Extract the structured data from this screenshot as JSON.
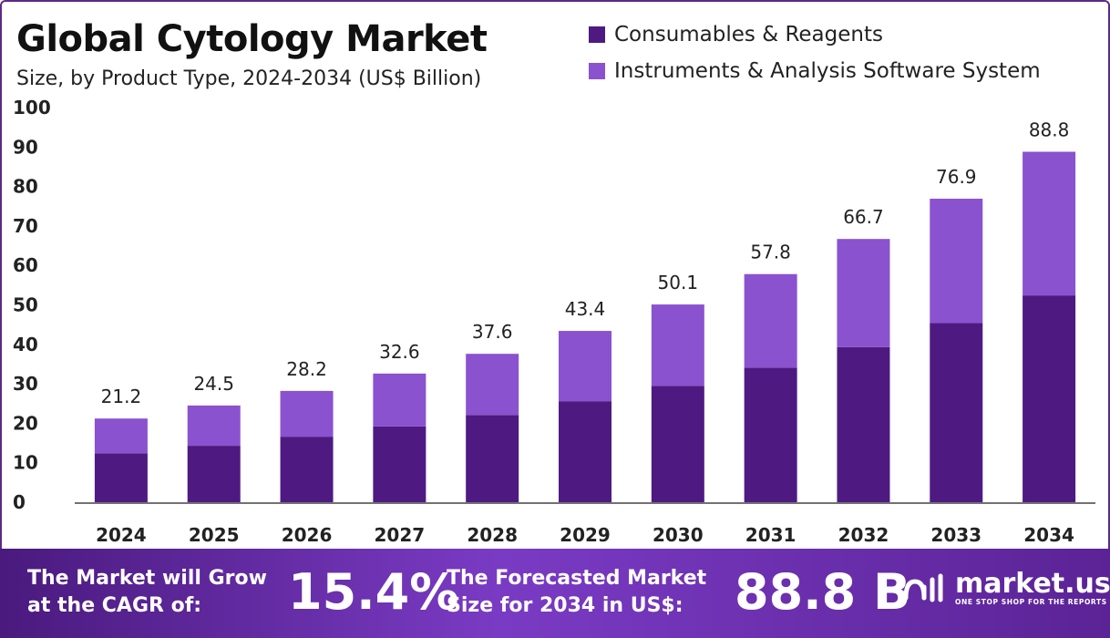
{
  "header": {
    "title": "Global Cytology Market",
    "subtitle": "Size, by Product Type, 2024-2034 (US$ Billion)"
  },
  "colors": {
    "consumables": "#4e1a82",
    "instruments": "#8a52cf",
    "axis": "#222222"
  },
  "chart_data": {
    "type": "bar",
    "stacked": true,
    "title": "Global Cytology Market",
    "subtitle": "Size, by Product Type, 2024-2034 (US$ Billion)",
    "categories": [
      "2024",
      "2025",
      "2026",
      "2027",
      "2028",
      "2029",
      "2030",
      "2031",
      "2032",
      "2033",
      "2034"
    ],
    "series": [
      {
        "name": "Consumables & Reagents",
        "values": [
          12.4,
          14.3,
          16.6,
          19.2,
          22.1,
          25.6,
          29.5,
          34.1,
          39.3,
          45.4,
          52.4
        ]
      },
      {
        "name": "Instruments & Analysis Software System",
        "values": [
          8.8,
          10.2,
          11.6,
          13.4,
          15.5,
          17.8,
          20.6,
          23.7,
          27.4,
          31.5,
          36.4
        ]
      }
    ],
    "totals": [
      21.2,
      24.5,
      28.2,
      32.6,
      37.6,
      43.4,
      50.1,
      57.8,
      66.7,
      76.9,
      88.8
    ],
    "total_labels": [
      "21.2",
      "24.5",
      "28.2",
      "32.6",
      "37.6",
      "43.4",
      "50.1",
      "57.8",
      "66.7",
      "76.9",
      "88.8"
    ],
    "yticks": [
      "0",
      "10",
      "20",
      "30",
      "40",
      "50",
      "60",
      "70",
      "80",
      "90",
      "100"
    ],
    "ylim": [
      0,
      100
    ],
    "xlabel": "",
    "ylabel": "",
    "grid": false,
    "legend_position": "top-right"
  },
  "footer": {
    "cagr_text": "The Market will Grow at the CAGR of:",
    "cagr_value": "15.4%",
    "forecast_text": "The Forecasted Market Size for 2034 in US$:",
    "forecast_value": "88.8 B",
    "brand_name": "market.us",
    "brand_tagline": "ONE STOP SHOP FOR THE REPORTS"
  }
}
